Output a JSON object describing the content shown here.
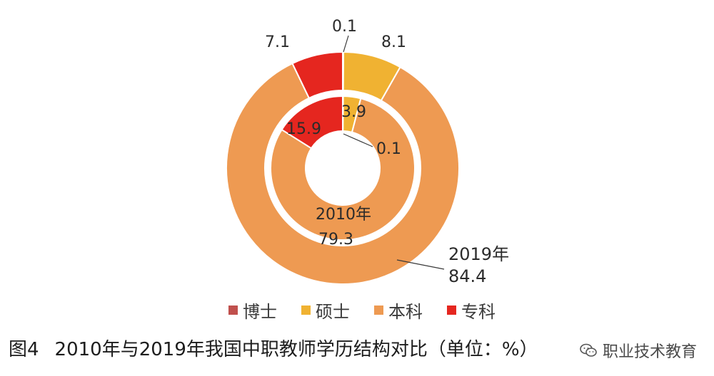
{
  "chart_data": {
    "type": "donut",
    "rings": [
      {
        "name": "2010年",
        "values": [
          0.1,
          3.9,
          79.3,
          15.9
        ]
      },
      {
        "name": "2019年",
        "values": [
          0.1,
          8.1,
          84.4,
          7.1
        ]
      }
    ],
    "categories": [
      "博士",
      "硕士",
      "本科",
      "专科"
    ],
    "colors": [
      "#c0504d",
      "#f0b232",
      "#ee9a52",
      "#e5261f"
    ],
    "legend_position": "bottom",
    "data_labels": {
      "outer_doctor": "0.1",
      "outer_master": "8.1",
      "outer_junior": "7.1",
      "inner_master": "3.9",
      "inner_junior": "15.9",
      "inner_doctor": "0.1",
      "inner_name": "2010年",
      "inner_bachelor": "79.3",
      "outer_name": "2019年",
      "outer_bachelor": "84.4"
    }
  },
  "caption": {
    "figure": "图4",
    "text": "2010年与2019年我国中职教师学历结构对比（单位：%）"
  },
  "watermark": {
    "text": "职业技术教育",
    "icon": "wechat-icon"
  }
}
